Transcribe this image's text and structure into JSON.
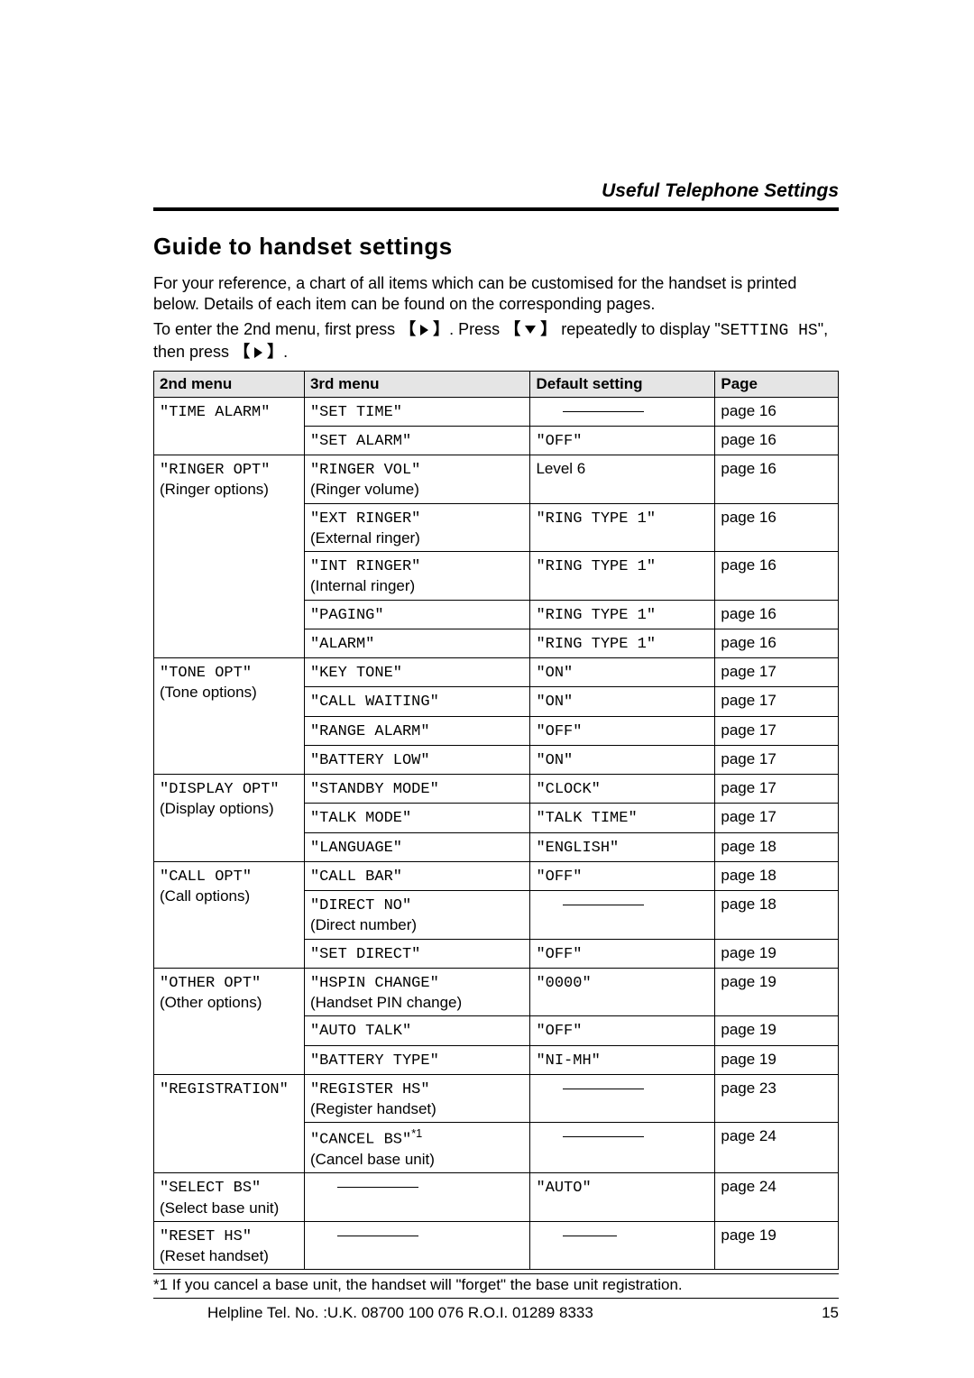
{
  "header": {
    "section": "Useful Telephone Settings"
  },
  "title": "Guide to handset settings",
  "intro": {
    "line1": "For your reference, a chart of all items which can be customised for the handset is printed below. Details of each item can be found on the corresponding pages.",
    "line2_a": "To enter the 2nd menu, first press ",
    "line2_b": ". Press ",
    "line2_c": " repeatedly to display \"",
    "line2_code": "SETTING HS",
    "line2_d": "\", then press ",
    "line2_e": "."
  },
  "table": {
    "columns": [
      "2nd menu",
      "3rd menu",
      "Default setting",
      "Page"
    ],
    "col_widths_pct": [
      22,
      33,
      27,
      18
    ],
    "header_bg": "#e5e5e5",
    "rows": [
      {
        "m2": "\"TIME ALARM\"",
        "m2_rowspan": 2,
        "items": [
          {
            "m3": "\"SET TIME\"",
            "def": "__dash__",
            "page": "page 16"
          },
          {
            "m3": "\"SET ALARM\"",
            "def": "\"OFF\"",
            "page": "page 16"
          }
        ]
      },
      {
        "m2": "\"RINGER OPT\"",
        "m2_sub": "(Ringer options)",
        "m2_rowspan": 5,
        "items": [
          {
            "m3": "\"RINGER VOL\"",
            "m3_sub": "(Ringer volume)",
            "def": "Level 6",
            "def_plain": true,
            "page": "page 16"
          },
          {
            "m3": "\"EXT RINGER\"",
            "m3_sub": "(External ringer)",
            "def": "\"RING TYPE 1\"",
            "page": "page 16"
          },
          {
            "m3": "\"INT RINGER\"",
            "m3_sub": "(Internal ringer)",
            "def": "\"RING TYPE 1\"",
            "page": "page 16"
          },
          {
            "m3": "\"PAGING\"",
            "def": "\"RING TYPE 1\"",
            "page": "page 16"
          },
          {
            "m3": "\"ALARM\"",
            "def": "\"RING TYPE 1\"",
            "page": "page 16"
          }
        ]
      },
      {
        "m2": "\"TONE OPT\"",
        "m2_sub": "(Tone options)",
        "m2_rowspan": 4,
        "items": [
          {
            "m3": "\"KEY TONE\"",
            "def": "\"ON\"",
            "page": "page 17"
          },
          {
            "m3": "\"CALL WAITING\"",
            "def": "\"ON\"",
            "page": "page 17"
          },
          {
            "m3": "\"RANGE ALARM\"",
            "def": "\"OFF\"",
            "page": "page 17"
          },
          {
            "m3": "\"BATTERY LOW\"",
            "def": "\"ON\"",
            "page": "page 17"
          }
        ]
      },
      {
        "m2": "\"DISPLAY OPT\"",
        "m2_sub": "(Display options)",
        "m2_rowspan": 3,
        "items": [
          {
            "m3": "\"STANDBY MODE\"",
            "def": "\"CLOCK\"",
            "page": "page 17"
          },
          {
            "m3": "\"TALK MODE\"",
            "def": "\"TALK TIME\"",
            "page": "page 17"
          },
          {
            "m3": "\"LANGUAGE\"",
            "def": "\"ENGLISH\"",
            "page": "page 18"
          }
        ]
      },
      {
        "m2": "\"CALL OPT\"",
        "m2_sub": "(Call options)",
        "m2_rowspan": 3,
        "items": [
          {
            "m3": "\"CALL BAR\"",
            "def": "\"OFF\"",
            "page": "page 18"
          },
          {
            "m3": "\"DIRECT NO\"",
            "m3_sub": "(Direct number)",
            "def": "__dash__",
            "page": "page 18"
          },
          {
            "m3": "\"SET DIRECT\"",
            "def": "\"OFF\"",
            "page": "page 19"
          }
        ]
      },
      {
        "m2": "\"OTHER OPT\"",
        "m2_sub": "(Other options)",
        "m2_rowspan": 3,
        "items": [
          {
            "m3": "\"HSPIN CHANGE\"",
            "m3_sub": "(Handset PIN change)",
            "def": "\"0000\"",
            "page": "page 19"
          },
          {
            "m3": "\"AUTO TALK\"",
            "def": "\"OFF\"",
            "page": "page 19"
          },
          {
            "m3": "\"BATTERY TYPE\"",
            "def": "\"NI-MH\"",
            "page": "page 19"
          }
        ]
      },
      {
        "m2": "\"REGISTRATION\"",
        "m2_rowspan": 2,
        "items": [
          {
            "m3": "\"REGISTER HS\"",
            "m3_sub": "(Register handset)",
            "def": "__dash__",
            "page": "page 23"
          },
          {
            "m3": "\"CANCEL BS\"",
            "m3_sup": "*1",
            "m3_sub": "(Cancel base unit)",
            "def": "__dash__",
            "page": "page 24"
          }
        ]
      },
      {
        "m2": "\"SELECT BS\"",
        "m2_sub": "(Select base unit)",
        "m2_rowspan": 1,
        "items": [
          {
            "m3": "__dash__",
            "def": "\"AUTO\"",
            "page": "page 24"
          }
        ]
      },
      {
        "m2": "\"RESET HS\"",
        "m2_sub": "(Reset handset)",
        "m2_rowspan": 1,
        "items": [
          {
            "m3": "__dash__",
            "def": "__dash_short__",
            "page": "page 19"
          }
        ]
      }
    ]
  },
  "footnote": "*1 If you cancel a base unit, the handset will \"forget\" the base unit registration.",
  "footer": {
    "helpline": "Helpline Tel. No. :U.K. 08700 100 076  R.O.I. 01289 8333",
    "page_number": "15"
  }
}
